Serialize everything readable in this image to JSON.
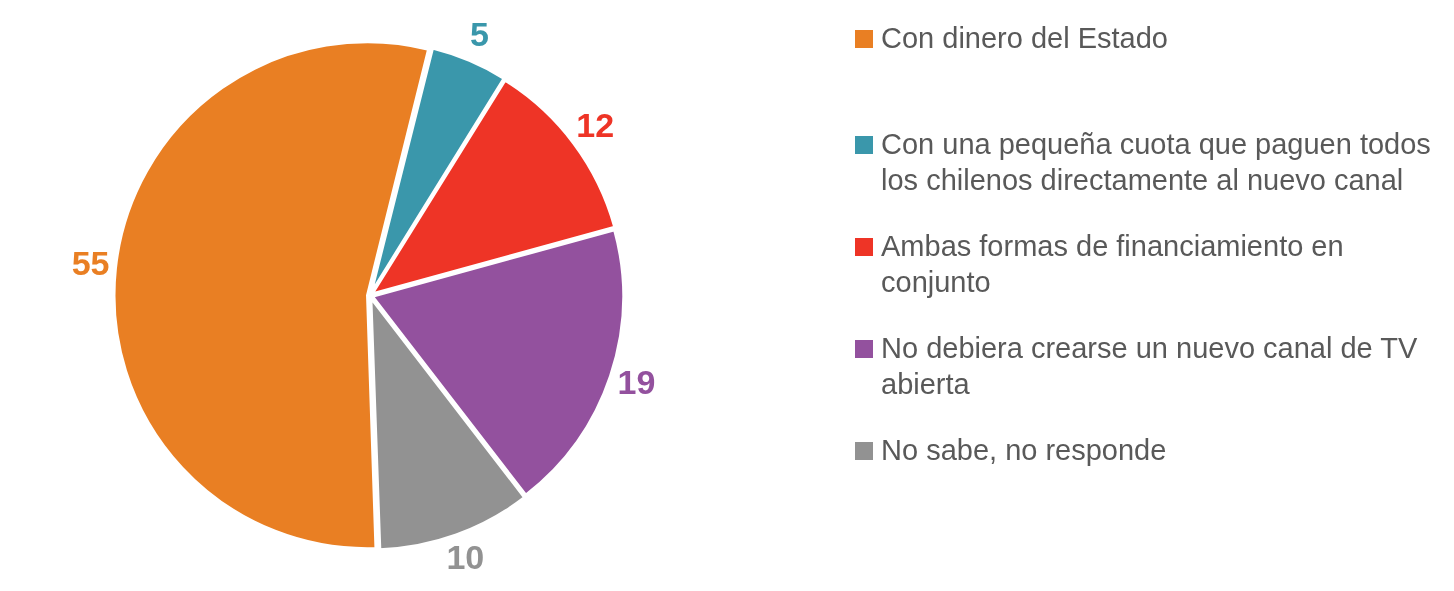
{
  "chart_data": {
    "type": "pie",
    "categories": [
      "Con dinero del Estado",
      "Con una pequeña cuota que paguen todos los chilenos directamente al nuevo canal",
      "Ambas formas de financiamiento en conjunto",
      "No debiera crearse un nuevo canal de TV abierta",
      "No sabe, no responde"
    ],
    "values": [
      55,
      5,
      12,
      19,
      10
    ],
    "colors": [
      "#e97f23",
      "#3a97ab",
      "#ee3426",
      "#93519e",
      "#929292"
    ],
    "data_labels": true,
    "legend": "right"
  }
}
